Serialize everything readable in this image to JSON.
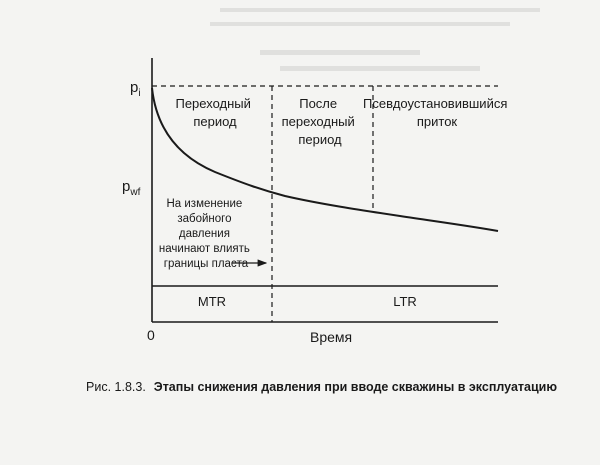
{
  "figure": {
    "y_top_label": "p",
    "y_top_sub": "i",
    "y_mid_label": "p",
    "y_mid_sub": "wf",
    "origin_label": "0",
    "x_axis_label": "Время",
    "regions": [
      {
        "lines": [
          "Переходный",
          "период"
        ]
      },
      {
        "lines": [
          "После",
          "переходный",
          "период"
        ]
      },
      {
        "lines": [
          "Псевдоустановившийся",
          "приток"
        ]
      }
    ],
    "boundary_note": [
      "На изменение",
      "забойного",
      "давления",
      "начинают влиять",
      "границы пласта"
    ],
    "mtr_label": "MTR",
    "ltr_label": "LTR"
  },
  "caption": {
    "number": "Рис. 1.8.3.",
    "title": "Этапы снижения давления при вводе скважины в эксплуатацию"
  }
}
